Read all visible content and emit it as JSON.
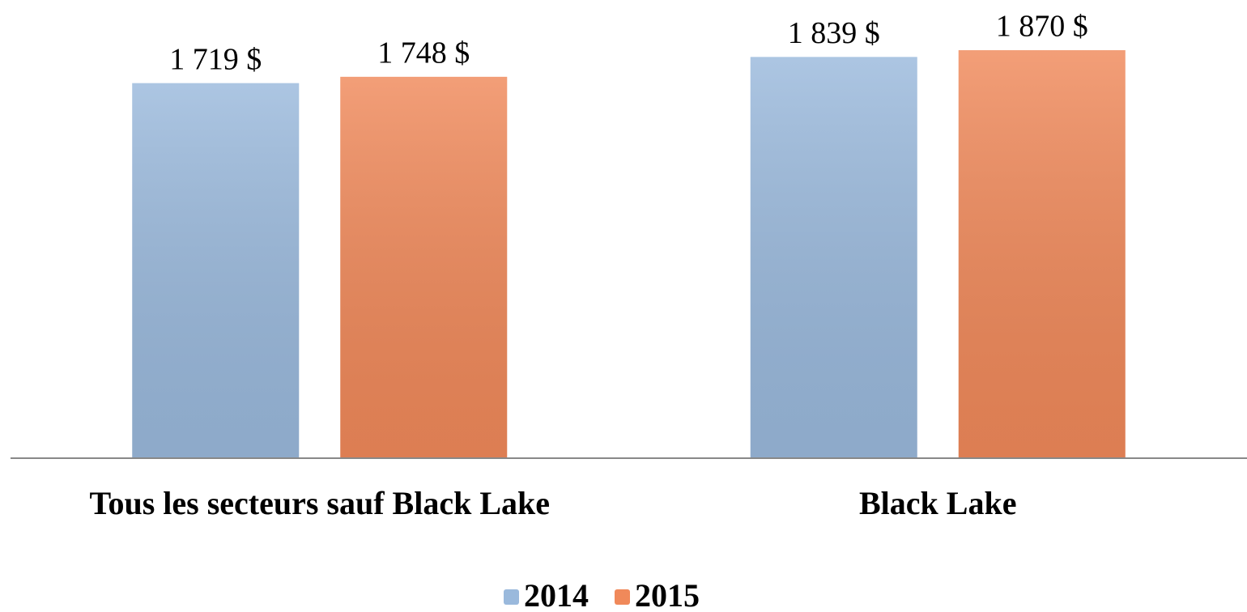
{
  "chart_data": {
    "type": "bar",
    "categories": [
      "Tous les secteurs sauf Black Lake",
      "Black Lake"
    ],
    "series": [
      {
        "name": "2014",
        "color": "#9ab9dc",
        "values": [
          1719,
          1839
        ],
        "value_labels": [
          "1 719  $",
          "1 839  $"
        ]
      },
      {
        "name": "2015",
        "color": "#f0895a",
        "values": [
          1748,
          1870
        ],
        "value_labels": [
          "1 748  $",
          "1 870  $"
        ]
      }
    ]
  }
}
